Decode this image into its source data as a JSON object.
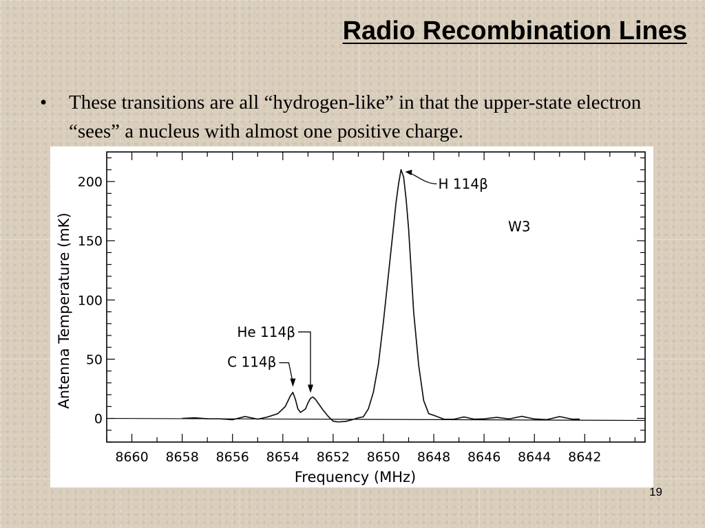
{
  "slide": {
    "title": "Radio Recombination Lines",
    "bullet": "These transitions are all “hydrogen-like” in that the upper-state electron “sees” a nucleus with almost one positive charge.",
    "page_number": "19"
  },
  "chart_data": {
    "type": "line",
    "title": "",
    "xlabel": "Frequency (MHz)",
    "ylabel": "Antenna Temperature (mK)",
    "xlim": [
      8661,
      8639.6
    ],
    "ylim": [
      -20,
      225
    ],
    "x_reversed": true,
    "x_ticks": [
      8660,
      8658,
      8656,
      8654,
      8652,
      8650,
      8648,
      8646,
      8644,
      8642
    ],
    "y_ticks": [
      0,
      50,
      100,
      150,
      200
    ],
    "source_label": "W3",
    "grid": false,
    "legend": "none",
    "series": [
      {
        "x": [
          8658.0,
          8657.5,
          8657.0,
          8656.5,
          8656.0,
          8655.5,
          8655.0,
          8654.6,
          8654.2,
          8653.9,
          8653.7,
          8653.6,
          8653.5,
          8653.4,
          8653.3,
          8653.1,
          8653.0,
          8652.9,
          8652.8,
          8652.7,
          8652.6,
          8652.4,
          8652.2,
          8652.0,
          8651.8,
          8651.5,
          8651.2,
          8651.0,
          8650.8,
          8650.6,
          8650.4,
          8650.2,
          8650.0,
          8649.8,
          8649.6,
          8649.5,
          8649.4,
          8649.3,
          8649.2,
          8649.1,
          8649.0,
          8648.9,
          8648.8,
          8648.6,
          8648.4,
          8648.2,
          8648.0,
          8647.6,
          8647.2,
          8646.8,
          8646.4,
          8646.0,
          8645.5,
          8645.0,
          8644.5,
          8644.0,
          8643.5,
          8643.0,
          8642.5,
          8642.2
        ],
        "values": [
          0,
          1,
          -1,
          0,
          -1,
          1,
          0,
          1,
          4,
          10,
          19,
          22,
          16,
          8,
          5,
          8,
          13,
          17,
          18,
          16,
          13,
          7,
          2,
          -2,
          -3,
          -2,
          -1,
          0,
          2,
          8,
          22,
          46,
          82,
          122,
          162,
          182,
          198,
          210,
          204,
          185,
          160,
          125,
          90,
          45,
          15,
          4,
          2,
          0,
          -1,
          1,
          0,
          -1,
          1,
          0,
          1,
          0,
          -1,
          1,
          0,
          -1
        ]
      }
    ],
    "annotations": [
      {
        "label": "C 114β",
        "x": 8653.6,
        "y": 22
      },
      {
        "label": "He 114β",
        "x": 8652.9,
        "y": 18
      },
      {
        "label": "H 114β",
        "x": 8649.3,
        "y": 210
      }
    ]
  }
}
